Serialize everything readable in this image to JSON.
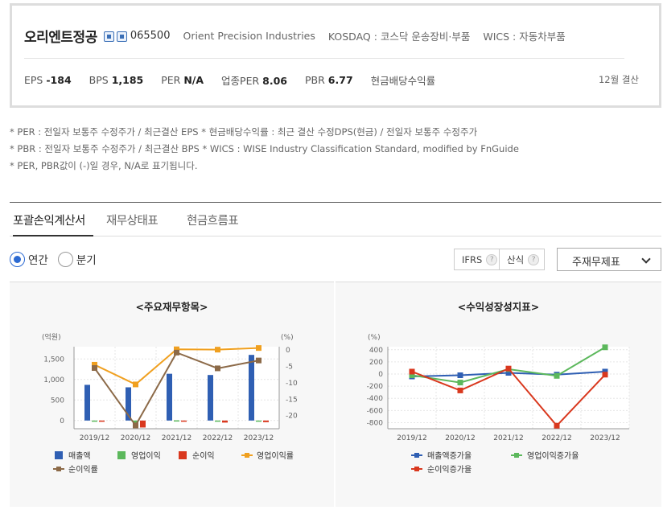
{
  "summary": {
    "company_name": "오리엔트정공",
    "stock_code": "065500",
    "english_name": "Orient Precision Industries",
    "market": "KOSDAQ : 코스닥 운송장비·부품",
    "wics": "WICS : 자동차부품",
    "metrics": [
      {
        "label": "EPS",
        "value": "-184"
      },
      {
        "label": "BPS",
        "value": "1,185"
      },
      {
        "label": "PER",
        "value": "N/A"
      },
      {
        "label": "업종PER",
        "value": "8.06"
      },
      {
        "label": "PBR",
        "value": "6.77"
      },
      {
        "label": "현금배당수익률",
        "value": ""
      }
    ],
    "settlement": "12월 결산"
  },
  "notes": [
    "* PER : 전일자 보통주 수정주가 / 최근결산 EPS * 현금배당수익률 : 최근 결산 수정DPS(현금) / 전일자 보통주 수정주가",
    "* PBR : 전일자 보통주 수정주가 / 최근결산 BPS * WICS : WISE Industry Classification Standard, modified by FnGuide",
    "* PER, PBR값이 (-)일 경우, N/A로 표기됩니다."
  ],
  "tabs": [
    {
      "label": "포괄손익계산서",
      "active": true
    },
    {
      "label": "재무상태표",
      "active": false
    },
    {
      "label": "현금흐름표",
      "active": false
    }
  ],
  "period": {
    "annual": "연간",
    "quarter": "분기",
    "selected": "annual"
  },
  "controls": {
    "ifrs": "IFRS",
    "calc": "산식",
    "help_glyph": "?",
    "select_value": "주재무제표"
  },
  "chart_data": [
    {
      "type": "bar",
      "title": "<주요재무항목>",
      "categories": [
        "2019/12",
        "2020/12",
        "2021/12",
        "2022/12",
        "2023/12"
      ],
      "y_unit": "(억원)",
      "y2_unit": "(%)",
      "ylim": [
        -200,
        1800
      ],
      "yticks": [
        "0",
        "500",
        "1,000",
        "1,500"
      ],
      "y2lim": [
        -24,
        1
      ],
      "y2ticks": [
        "0",
        "-5",
        "-10",
        "-15",
        "-20"
      ],
      "series": [
        {
          "name": "매출액",
          "kind": "bar",
          "axis": "left",
          "color": "#2f5fb3",
          "values": [
            870,
            810,
            1140,
            1110,
            1600
          ]
        },
        {
          "name": "영업이익",
          "kind": "bar",
          "axis": "left",
          "color": "#5cb85c",
          "values": [
            -20,
            -60,
            5,
            0,
            -5
          ]
        },
        {
          "name": "순이익",
          "kind": "bar",
          "axis": "left",
          "color": "#d9381e",
          "values": [
            -30,
            -170,
            -10,
            -50,
            -40
          ]
        },
        {
          "name": "영업이익률",
          "kind": "line",
          "axis": "right",
          "color": "#f0a020",
          "values": [
            -4.5,
            -10.5,
            0.2,
            0.1,
            0.6
          ]
        },
        {
          "name": "순이익률",
          "kind": "line",
          "axis": "right",
          "color": "#8c6a48",
          "values": [
            -5.5,
            -23.0,
            -0.8,
            -5.6,
            -3.2
          ]
        }
      ]
    },
    {
      "type": "line",
      "title": "<수익성장성지표>",
      "categories": [
        "2019/12",
        "2020/12",
        "2021/12",
        "2022/12",
        "2023/12"
      ],
      "y_unit": "(%)",
      "ylim": [
        -900,
        450
      ],
      "yticks": [
        "400",
        "200",
        "0",
        "-200",
        "-400",
        "-600",
        "-800"
      ],
      "series": [
        {
          "name": "매출액증가율",
          "color": "#2f5fb3",
          "values": [
            -40,
            -20,
            20,
            -10,
            40
          ]
        },
        {
          "name": "영업이익증가율",
          "color": "#5cb85c",
          "values": [
            -20,
            -140,
            80,
            -30,
            440
          ]
        },
        {
          "name": "순이익증가율",
          "color": "#d9381e",
          "values": [
            40,
            -270,
            90,
            -850,
            -10
          ]
        }
      ]
    }
  ]
}
